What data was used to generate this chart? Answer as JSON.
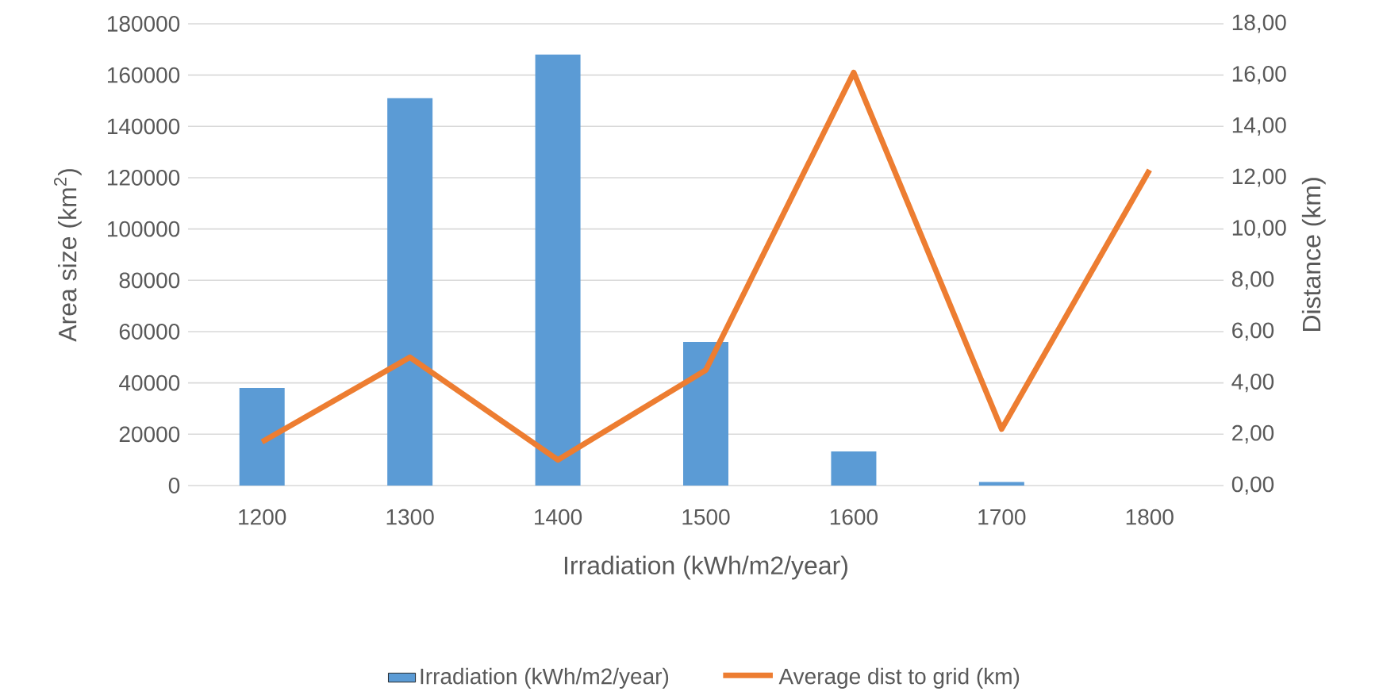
{
  "chart_data": {
    "type": "bar",
    "xlabel": "Irradiation (kWh/m2/year)",
    "ylabel": "Area size (km$^{2}$)",
    "y2label": "Distance (km)",
    "categories": [
      "1200",
      "1300",
      "1400",
      "1500",
      "1600",
      "1700",
      "1800"
    ],
    "series": [
      {
        "name": "Irradiation (kWh/m2/year)",
        "color": "#5b9bd5",
        "values": [
          38000,
          151000,
          168000,
          56000,
          13300,
          1400,
          0
        ]
      },
      {
        "name": "Average dist to grid (km)",
        "type": "line",
        "axis": "y2",
        "color": "#ed7d31",
        "values": [
          1.7,
          5.0,
          1.0,
          4.5,
          16.1,
          2.2,
          12.3
        ]
      }
    ],
    "ylim": [
      0,
      180000
    ],
    "yticks": [
      0,
      20000,
      40000,
      60000,
      80000,
      100000,
      120000,
      140000,
      160000,
      180000
    ],
    "y2lim": [
      0,
      18
    ],
    "y2ticks": [
      {
        "value": 0,
        "label": "0,00"
      },
      {
        "value": 2,
        "label": "2,00"
      },
      {
        "value": 4,
        "label": "4,00"
      },
      {
        "value": 6,
        "label": "6,00"
      },
      {
        "value": 8,
        "label": "8,00"
      },
      {
        "value": 10,
        "label": "10,00"
      },
      {
        "value": 12,
        "label": "12,00"
      },
      {
        "value": 14,
        "label": "14,00"
      },
      {
        "value": 16,
        "label": "16,00"
      },
      {
        "value": 18,
        "label": "18,00"
      }
    ],
    "grid": "y",
    "legend": "bottom",
    "marker": "none",
    "line_style": "solid"
  }
}
